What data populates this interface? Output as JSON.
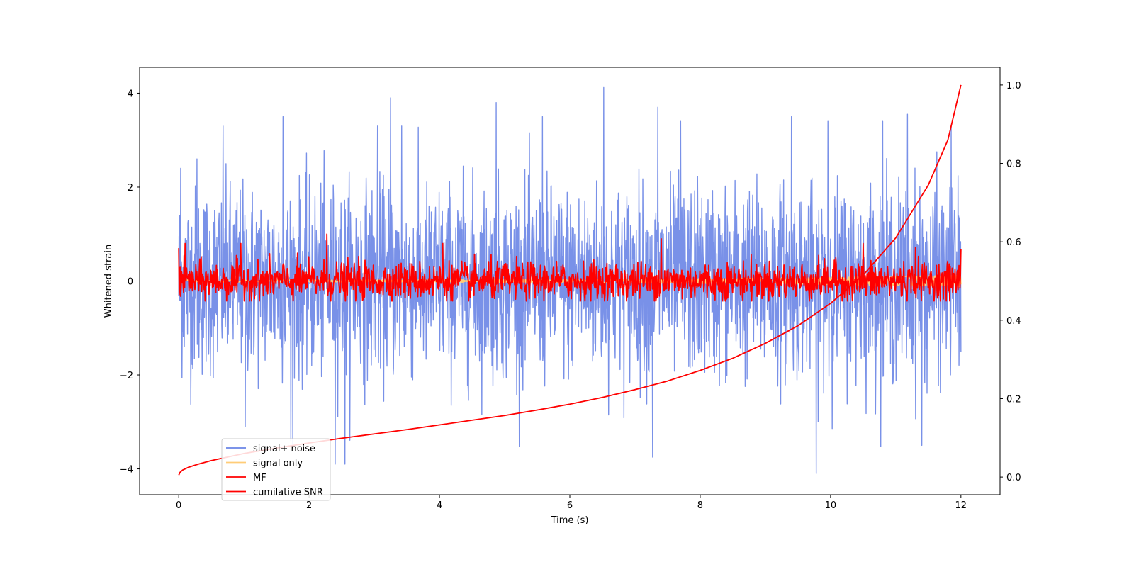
{
  "chart_data": {
    "type": "line",
    "title": "",
    "xlabel": "Time (s)",
    "ylabel": "Whitened strain",
    "ylabel_right": "",
    "xlim": [
      -0.6,
      12.6
    ],
    "ylim": [
      -4.55,
      4.55
    ],
    "ylim_right": [
      -0.045,
      1.045
    ],
    "x_ticks": [
      0,
      2,
      4,
      6,
      8,
      10,
      12
    ],
    "x_tick_labels": [
      "0",
      "2",
      "4",
      "6",
      "8",
      "10",
      "12"
    ],
    "y_ticks": [
      -4,
      -2,
      0,
      2,
      4
    ],
    "y_tick_labels": [
      "−4",
      "−2",
      "0",
      "2",
      "4"
    ],
    "y_right_ticks": [
      0.0,
      0.2,
      0.4,
      0.6,
      0.8,
      1.0
    ],
    "y_right_tick_labels": [
      "0.0",
      "0.2",
      "0.4",
      "0.6",
      "0.8",
      "1.0"
    ],
    "grid": false,
    "legend_position": "lower-left",
    "series": [
      {
        "name": "signal+ noise",
        "color": "#6a85e6",
        "axis": "left",
        "style": "noise",
        "x_range": [
          0,
          12
        ],
        "samples": 2400,
        "approx_range": [
          -4.15,
          4.15
        ],
        "approx_band": [
          -1.0,
          1.0
        ],
        "noise_peaks": [
          {
            "x": 0.03,
            "y": 2.4
          },
          {
            "x": 0.28,
            "y": 2.6
          },
          {
            "x": 0.68,
            "y": 3.3
          },
          {
            "x": 1.02,
            "y": -3.1
          },
          {
            "x": 1.6,
            "y": 3.5
          },
          {
            "x": 1.72,
            "y": -3.4
          },
          {
            "x": 2.4,
            "y": -3.9
          },
          {
            "x": 2.55,
            "y": -3.9
          },
          {
            "x": 3.05,
            "y": 3.3
          },
          {
            "x": 3.25,
            "y": 3.9
          },
          {
            "x": 3.42,
            "y": 3.3
          },
          {
            "x": 4.87,
            "y": 3.8
          },
          {
            "x": 5.58,
            "y": 3.5
          },
          {
            "x": 6.52,
            "y": 4.12
          },
          {
            "x": 7.27,
            "y": -3.75
          },
          {
            "x": 7.35,
            "y": 3.7
          },
          {
            "x": 7.7,
            "y": 3.4
          },
          {
            "x": 9.4,
            "y": 3.5
          },
          {
            "x": 9.78,
            "y": -4.1
          },
          {
            "x": 9.96,
            "y": 3.4
          },
          {
            "x": 10.8,
            "y": 3.4
          },
          {
            "x": 11.18,
            "y": 3.55
          },
          {
            "x": 11.4,
            "y": -3.5
          },
          {
            "x": 11.85,
            "y": 3.3
          }
        ]
      },
      {
        "name": "signal only",
        "color": "#ffcc77",
        "axis": "left",
        "style": "chirp",
        "x_range": [
          0,
          12
        ],
        "approx_amplitude": [
          0.02,
          0.12
        ]
      },
      {
        "name": "MF",
        "color": "#ff0000",
        "axis": "left",
        "style": "noise",
        "x_range": [
          0,
          12
        ],
        "samples": 1600,
        "approx_range": [
          -0.5,
          1.0
        ],
        "approx_band": [
          -0.2,
          0.2
        ],
        "noise_peaks": [
          {
            "x": 0.0,
            "y": 0.7
          },
          {
            "x": 0.1,
            "y": 0.8
          },
          {
            "x": 0.95,
            "y": 0.8
          },
          {
            "x": 2.27,
            "y": 1.0
          },
          {
            "x": 4.05,
            "y": 0.8
          },
          {
            "x": 7.4,
            "y": 0.9
          },
          {
            "x": 10.5,
            "y": 0.8
          },
          {
            "x": 11.3,
            "y": 0.72
          },
          {
            "x": 12.0,
            "y": 0.68
          }
        ]
      },
      {
        "name": "cumilative SNR",
        "color": "#ff0000",
        "axis": "right",
        "style": "curve",
        "points": [
          [
            0.0,
            0.005
          ],
          [
            0.02,
            0.012
          ],
          [
            0.06,
            0.018
          ],
          [
            0.15,
            0.025
          ],
          [
            0.3,
            0.033
          ],
          [
            0.5,
            0.042
          ],
          [
            1.0,
            0.06
          ],
          [
            1.5,
            0.074
          ],
          [
            2.0,
            0.087
          ],
          [
            2.5,
            0.099
          ],
          [
            3.0,
            0.11
          ],
          [
            3.5,
            0.121
          ],
          [
            4.0,
            0.133
          ],
          [
            4.5,
            0.145
          ],
          [
            5.0,
            0.157
          ],
          [
            5.5,
            0.171
          ],
          [
            6.0,
            0.186
          ],
          [
            6.5,
            0.203
          ],
          [
            7.0,
            0.223
          ],
          [
            7.5,
            0.245
          ],
          [
            8.0,
            0.272
          ],
          [
            8.5,
            0.303
          ],
          [
            9.0,
            0.341
          ],
          [
            9.5,
            0.386
          ],
          [
            10.0,
            0.443
          ],
          [
            10.5,
            0.515
          ],
          [
            11.0,
            0.61
          ],
          [
            11.5,
            0.745
          ],
          [
            11.8,
            0.86
          ],
          [
            12.0,
            1.0
          ]
        ]
      }
    ]
  }
}
